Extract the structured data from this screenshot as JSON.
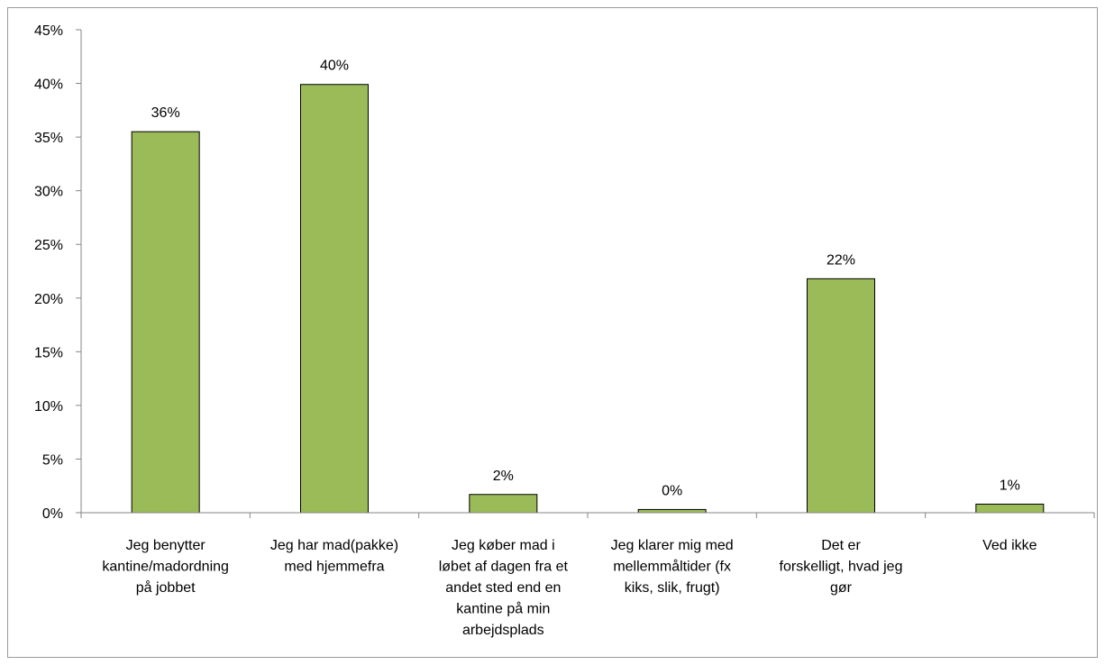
{
  "chart_data": {
    "type": "bar",
    "categories": [
      [
        "Jeg benytter",
        "kantine/madordning",
        "på jobbet"
      ],
      [
        "Jeg har mad(pakke)",
        "med hjemmefra"
      ],
      [
        "Jeg køber mad i",
        "løbet af dagen fra et",
        "andet sted end en",
        "kantine på min",
        "arbejdsplads"
      ],
      [
        "Jeg klarer mig med",
        "mellemmåltider (fx",
        "kiks, slik, frugt)"
      ],
      [
        "Det er",
        "forskelligt, hvad jeg",
        "gør"
      ],
      [
        "Ved ikke"
      ]
    ],
    "values": [
      0.355,
      0.399,
      0.017,
      0.003,
      0.218,
      0.008
    ],
    "data_labels": [
      "36%",
      "40%",
      "2%",
      "0%",
      "22%",
      "1%"
    ],
    "ylim": [
      0,
      0.45
    ],
    "yticks": [
      0,
      0.05,
      0.1,
      0.15,
      0.2,
      0.25,
      0.3,
      0.35,
      0.4,
      0.45
    ],
    "ytick_labels": [
      "0%",
      "5%",
      "10%",
      "15%",
      "20%",
      "25%",
      "30%",
      "35%",
      "40%",
      "45%"
    ],
    "title": "",
    "xlabel": "",
    "ylabel": "",
    "grid": false,
    "bar_color": "#9bbb59",
    "bar_edge_color": "#000000"
  }
}
